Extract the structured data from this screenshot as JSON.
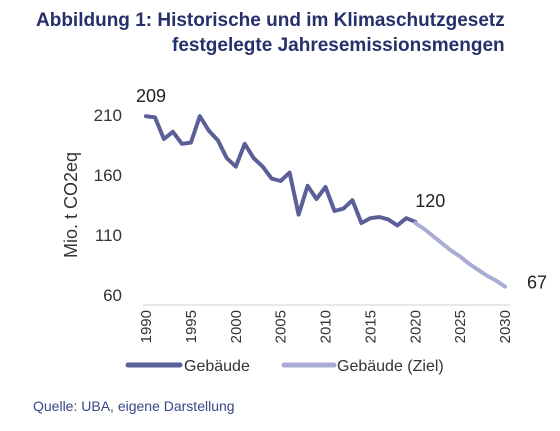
{
  "title": {
    "line1": "Abbildung 1: Historische und im Klimaschutzgesetz",
    "line2": "festgelegte Jahresemissionsmengen"
  },
  "source": "Quelle: UBA, eigene Darstellung",
  "chart_data": {
    "type": "line",
    "ylabel": "Mio. t CO2eq",
    "xlabel": "",
    "ylim": [
      60,
      210
    ],
    "yticks": [
      60,
      110,
      160,
      210
    ],
    "xlim": [
      1990,
      2030
    ],
    "xticks": [
      1990,
      1995,
      2000,
      2005,
      2010,
      2015,
      2020,
      2025,
      2030
    ],
    "grid": false,
    "legend_position": "bottom",
    "series": [
      {
        "name": "Gebäude",
        "color": "#5a5f98",
        "x": [
          1990,
          1991,
          1992,
          1993,
          1994,
          1995,
          1996,
          1997,
          1998,
          1999,
          2000,
          2001,
          2002,
          2003,
          2004,
          2005,
          2006,
          2007,
          2008,
          2009,
          2010,
          2011,
          2012,
          2013,
          2014,
          2015,
          2016,
          2017,
          2018,
          2019,
          2020
        ],
        "values": [
          209,
          208,
          190,
          196,
          186,
          187,
          209,
          197,
          189,
          174,
          167,
          186,
          174,
          167,
          157,
          155,
          162,
          127,
          151,
          140,
          150,
          130,
          132,
          139,
          120,
          124,
          125,
          123,
          118,
          124,
          121
        ]
      },
      {
        "name": "Gebäude (Ziel)",
        "color": "#a9add3",
        "x": [
          2020,
          2021,
          2022,
          2023,
          2024,
          2025,
          2026,
          2027,
          2028,
          2029,
          2030
        ],
        "values": [
          120,
          115,
          109,
          103,
          97,
          92,
          86,
          81,
          76,
          72,
          67
        ]
      }
    ],
    "annotations": [
      {
        "x": 1990,
        "y": 209,
        "text": "209"
      },
      {
        "x": 2020,
        "y": 120,
        "text": "120"
      },
      {
        "x": 2030,
        "y": 67,
        "text": "67"
      }
    ]
  }
}
